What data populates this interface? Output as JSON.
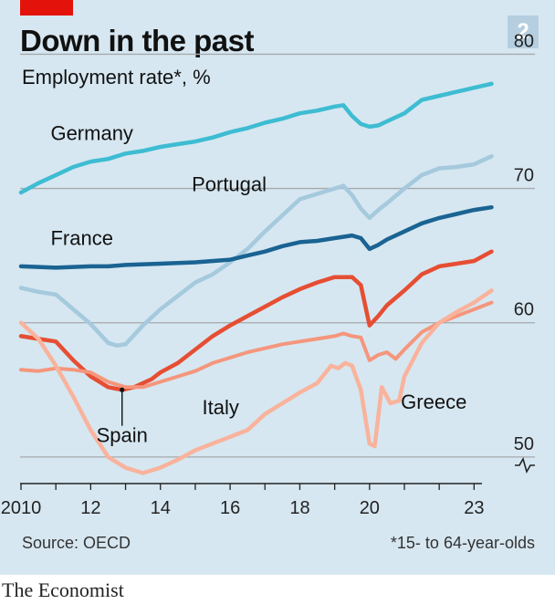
{
  "header": {
    "title": "Down in the past",
    "subtitle": "Employment rate*, %",
    "chart_number": "2"
  },
  "footer": {
    "source": "Source: OECD",
    "footnote": "*15- to 64-year-olds",
    "brand": "The Economist"
  },
  "colors": {
    "background": "#d6e7f1",
    "red_tag": "#e3120b",
    "badge": "#b5cfe0",
    "gridline": "#a7a9ab"
  },
  "chart_data": {
    "type": "line",
    "x_ticks": [
      {
        "value": 2010,
        "label": "2010"
      },
      {
        "value": 2012,
        "label": "12"
      },
      {
        "value": 2014,
        "label": "14"
      },
      {
        "value": 2016,
        "label": "16"
      },
      {
        "value": 2018,
        "label": "18"
      },
      {
        "value": 2020,
        "label": "20"
      },
      {
        "value": 2023,
        "label": "23"
      }
    ],
    "xlim": [
      2010,
      2023.75
    ],
    "ylim": [
      47,
      82
    ],
    "y_ticks": [
      {
        "value": 50,
        "label": "50"
      },
      {
        "value": 60,
        "label": "60"
      },
      {
        "value": 70,
        "label": "70"
      },
      {
        "value": 80,
        "label": "80"
      }
    ],
    "axis_break": true,
    "series": [
      {
        "name": "Germany",
        "color": "#3ebcd2",
        "width": 4.5,
        "points": [
          [
            2010,
            69.7
          ],
          [
            2010.5,
            70.4
          ],
          [
            2011,
            71.0
          ],
          [
            2011.5,
            71.6
          ],
          [
            2012,
            72.0
          ],
          [
            2012.5,
            72.2
          ],
          [
            2013,
            72.6
          ],
          [
            2013.5,
            72.8
          ],
          [
            2014,
            73.1
          ],
          [
            2014.5,
            73.3
          ],
          [
            2015,
            73.5
          ],
          [
            2015.5,
            73.8
          ],
          [
            2016,
            74.2
          ],
          [
            2016.5,
            74.5
          ],
          [
            2017,
            74.9
          ],
          [
            2017.5,
            75.2
          ],
          [
            2018,
            75.6
          ],
          [
            2018.5,
            75.8
          ],
          [
            2019,
            76.1
          ],
          [
            2019.25,
            76.2
          ],
          [
            2019.5,
            75.4
          ],
          [
            2019.75,
            74.8
          ],
          [
            2020,
            74.6
          ],
          [
            2020.25,
            74.7
          ],
          [
            2020.5,
            75.0
          ],
          [
            2021,
            75.6
          ],
          [
            2021.5,
            76.6
          ],
          [
            2022,
            76.9
          ],
          [
            2022.5,
            77.2
          ],
          [
            2023,
            77.5
          ],
          [
            2023.5,
            77.8
          ]
        ]
      },
      {
        "name": "Portugal",
        "color": "#a5c9dd",
        "width": 4.5,
        "points": [
          [
            2010,
            62.6
          ],
          [
            2010.5,
            62.3
          ],
          [
            2011,
            62.1
          ],
          [
            2011.5,
            61.0
          ],
          [
            2012,
            59.9
          ],
          [
            2012.5,
            58.5
          ],
          [
            2012.75,
            58.3
          ],
          [
            2013,
            58.4
          ],
          [
            2013.5,
            59.8
          ],
          [
            2014,
            61.0
          ],
          [
            2014.5,
            62.0
          ],
          [
            2015,
            63.0
          ],
          [
            2015.5,
            63.6
          ],
          [
            2016,
            64.5
          ],
          [
            2016.5,
            65.5
          ],
          [
            2017,
            66.8
          ],
          [
            2017.5,
            68.0
          ],
          [
            2018,
            69.2
          ],
          [
            2018.5,
            69.6
          ],
          [
            2019,
            70.0
          ],
          [
            2019.25,
            70.2
          ],
          [
            2019.5,
            69.5
          ],
          [
            2019.75,
            68.5
          ],
          [
            2020,
            67.8
          ],
          [
            2020.25,
            68.4
          ],
          [
            2020.5,
            68.9
          ],
          [
            2021,
            70.0
          ],
          [
            2021.5,
            71.0
          ],
          [
            2022,
            71.5
          ],
          [
            2022.5,
            71.6
          ],
          [
            2023,
            71.8
          ],
          [
            2023.5,
            72.4
          ]
        ]
      },
      {
        "name": "France",
        "color": "#1a6392",
        "width": 4.5,
        "points": [
          [
            2010,
            64.2
          ],
          [
            2011,
            64.1
          ],
          [
            2012,
            64.2
          ],
          [
            2012.5,
            64.2
          ],
          [
            2013,
            64.3
          ],
          [
            2014,
            64.4
          ],
          [
            2015,
            64.5
          ],
          [
            2016,
            64.7
          ],
          [
            2016.5,
            65.0
          ],
          [
            2017,
            65.3
          ],
          [
            2017.5,
            65.7
          ],
          [
            2018,
            66.0
          ],
          [
            2018.5,
            66.1
          ],
          [
            2019,
            66.3
          ],
          [
            2019.5,
            66.5
          ],
          [
            2019.75,
            66.3
          ],
          [
            2020,
            65.5
          ],
          [
            2020.25,
            65.8
          ],
          [
            2020.5,
            66.2
          ],
          [
            2021,
            66.8
          ],
          [
            2021.5,
            67.4
          ],
          [
            2022,
            67.8
          ],
          [
            2022.5,
            68.1
          ],
          [
            2023,
            68.4
          ],
          [
            2023.5,
            68.6
          ]
        ]
      },
      {
        "name": "Spain",
        "color": "#e64e33",
        "width": 4.5,
        "points": [
          [
            2010,
            59.0
          ],
          [
            2010.5,
            58.8
          ],
          [
            2011,
            58.6
          ],
          [
            2011.5,
            57.2
          ],
          [
            2012,
            56.0
          ],
          [
            2012.5,
            55.2
          ],
          [
            2012.9,
            55.0
          ],
          [
            2013.25,
            55.2
          ],
          [
            2013.75,
            55.8
          ],
          [
            2014,
            56.3
          ],
          [
            2014.5,
            57.0
          ],
          [
            2015,
            58.0
          ],
          [
            2015.5,
            59.0
          ],
          [
            2016,
            59.8
          ],
          [
            2016.5,
            60.5
          ],
          [
            2017,
            61.2
          ],
          [
            2017.5,
            61.9
          ],
          [
            2018,
            62.5
          ],
          [
            2018.5,
            63.0
          ],
          [
            2019,
            63.4
          ],
          [
            2019.5,
            63.4
          ],
          [
            2019.75,
            62.8
          ],
          [
            2020,
            59.8
          ],
          [
            2020.25,
            60.5
          ],
          [
            2020.5,
            61.3
          ],
          [
            2021,
            62.4
          ],
          [
            2021.5,
            63.6
          ],
          [
            2022,
            64.2
          ],
          [
            2022.5,
            64.4
          ],
          [
            2023,
            64.6
          ],
          [
            2023.5,
            65.3
          ]
        ]
      },
      {
        "name": "Italy",
        "color": "#f5967c",
        "width": 4,
        "points": [
          [
            2010,
            56.5
          ],
          [
            2010.5,
            56.4
          ],
          [
            2011,
            56.6
          ],
          [
            2011.5,
            56.5
          ],
          [
            2012,
            56.3
          ],
          [
            2012.5,
            55.6
          ],
          [
            2013,
            55.2
          ],
          [
            2013.5,
            55.2
          ],
          [
            2014,
            55.6
          ],
          [
            2014.5,
            56.0
          ],
          [
            2015,
            56.4
          ],
          [
            2015.5,
            57.0
          ],
          [
            2016,
            57.4
          ],
          [
            2016.5,
            57.8
          ],
          [
            2017,
            58.1
          ],
          [
            2017.5,
            58.4
          ],
          [
            2018,
            58.6
          ],
          [
            2018.5,
            58.8
          ],
          [
            2019,
            59.0
          ],
          [
            2019.25,
            59.2
          ],
          [
            2019.5,
            59.0
          ],
          [
            2019.75,
            58.9
          ],
          [
            2020,
            57.2
          ],
          [
            2020.25,
            57.6
          ],
          [
            2020.5,
            57.8
          ],
          [
            2020.75,
            57.3
          ],
          [
            2021,
            58.0
          ],
          [
            2021.5,
            59.3
          ],
          [
            2022,
            60.0
          ],
          [
            2022.5,
            60.5
          ],
          [
            2023,
            61.0
          ],
          [
            2023.5,
            61.5
          ]
        ]
      },
      {
        "name": "Greece",
        "color": "#f9b39c",
        "width": 4.5,
        "points": [
          [
            2010,
            60.0
          ],
          [
            2010.5,
            58.8
          ],
          [
            2011,
            56.8
          ],
          [
            2011.5,
            54.5
          ],
          [
            2012,
            52.0
          ],
          [
            2012.5,
            50.0
          ],
          [
            2013,
            49.2
          ],
          [
            2013.5,
            48.8
          ],
          [
            2014,
            49.2
          ],
          [
            2014.5,
            49.8
          ],
          [
            2015,
            50.5
          ],
          [
            2015.5,
            51.0
          ],
          [
            2016,
            51.5
          ],
          [
            2016.5,
            52.0
          ],
          [
            2017,
            53.2
          ],
          [
            2017.5,
            54.0
          ],
          [
            2018,
            54.8
          ],
          [
            2018.5,
            55.5
          ],
          [
            2018.9,
            56.8
          ],
          [
            2019.1,
            56.6
          ],
          [
            2019.3,
            57.0
          ],
          [
            2019.5,
            56.8
          ],
          [
            2019.75,
            55.0
          ],
          [
            2020,
            51.0
          ],
          [
            2020.15,
            50.8
          ],
          [
            2020.35,
            55.2
          ],
          [
            2020.6,
            54.0
          ],
          [
            2020.85,
            54.2
          ],
          [
            2021,
            56.0
          ],
          [
            2021.5,
            58.5
          ],
          [
            2022,
            60.0
          ],
          [
            2022.5,
            60.8
          ],
          [
            2023,
            61.5
          ],
          [
            2023.5,
            62.4
          ]
        ]
      }
    ],
    "labels": [
      {
        "series": "Germany",
        "x": 2010.85,
        "y": 73.6
      },
      {
        "series": "Portugal",
        "x": 2014.9,
        "y": 69.8
      },
      {
        "series": "France",
        "x": 2010.85,
        "y": 65.8
      },
      {
        "series": "Italy",
        "x": 2015.2,
        "y": 53.2
      },
      {
        "series": "Greece",
        "x": 2020.9,
        "y": 53.6
      },
      {
        "series": "Spain",
        "x": 2012.9,
        "y": 51.1,
        "anchor": "middle",
        "leader": [
          2012.9,
          55.0
        ]
      }
    ]
  }
}
